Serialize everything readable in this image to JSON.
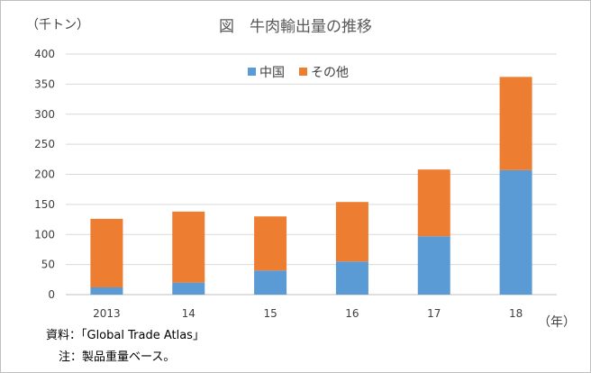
{
  "title": "図　牛肉輸出量の推移",
  "ylabel": "（千トン）",
  "xunit": "（年）",
  "source": "資料：「Global Trade Atlas」",
  "note": "注：製品重量ベース。",
  "colors": {
    "china": "#5b9bd5",
    "other": "#ed7d31",
    "grid": "#d9d9d9",
    "axis": "#bfbfbf"
  },
  "chart_data": {
    "type": "bar",
    "stacked": true,
    "categories": [
      "2013",
      "14",
      "15",
      "16",
      "17",
      "18"
    ],
    "series": [
      {
        "name": "中国",
        "values": [
          12,
          20,
          40,
          55,
          97,
          207
        ]
      },
      {
        "name": "その他",
        "values": [
          114,
          118,
          90,
          99,
          111,
          155
        ]
      }
    ],
    "yticks": [
      0,
      50,
      100,
      150,
      200,
      250,
      300,
      350,
      400
    ],
    "ylim": [
      0,
      400
    ],
    "grid": true,
    "legend": "top-center"
  }
}
